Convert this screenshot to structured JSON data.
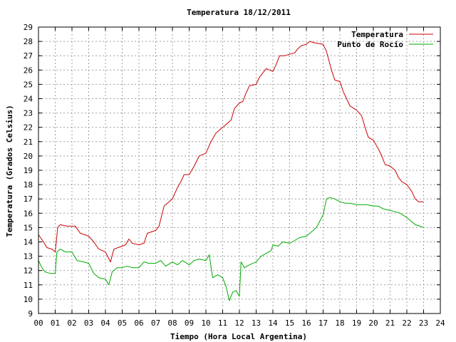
{
  "chart_data": {
    "type": "line",
    "title": "Temperatura 18/12/2011",
    "xlabel": "Tiempo (Hora Local Argentina)",
    "ylabel": "Temperatura (Grados Celsius)",
    "xlim": [
      0,
      24
    ],
    "ylim": [
      9,
      29
    ],
    "x_ticks": [
      "00",
      "01",
      "02",
      "03",
      "04",
      "05",
      "06",
      "07",
      "08",
      "09",
      "10",
      "11",
      "12",
      "13",
      "14",
      "15",
      "16",
      "17",
      "18",
      "19",
      "20",
      "21",
      "22",
      "23",
      "24"
    ],
    "y_ticks": [
      9,
      10,
      11,
      12,
      13,
      14,
      15,
      16,
      17,
      18,
      19,
      20,
      21,
      22,
      23,
      24,
      25,
      26,
      27,
      28,
      29
    ],
    "grid": true,
    "legend_position": "top-right",
    "series": [
      {
        "name": "Temperatura",
        "color": "#cc0000",
        "points": [
          [
            0.0,
            14.5
          ],
          [
            0.3,
            14.0
          ],
          [
            0.5,
            13.6
          ],
          [
            0.8,
            13.5
          ],
          [
            1.0,
            13.3
          ],
          [
            1.15,
            15.0
          ],
          [
            1.3,
            15.2
          ],
          [
            1.7,
            15.1
          ],
          [
            2.2,
            15.1
          ],
          [
            2.5,
            14.6
          ],
          [
            3.0,
            14.4
          ],
          [
            3.3,
            14.0
          ],
          [
            3.6,
            13.5
          ],
          [
            4.0,
            13.3
          ],
          [
            4.3,
            12.6
          ],
          [
            4.5,
            13.5
          ],
          [
            5.0,
            13.7
          ],
          [
            5.2,
            13.8
          ],
          [
            5.4,
            14.2
          ],
          [
            5.6,
            13.9
          ],
          [
            6.0,
            13.8
          ],
          [
            6.3,
            13.9
          ],
          [
            6.5,
            14.6
          ],
          [
            7.0,
            14.8
          ],
          [
            7.2,
            15.1
          ],
          [
            7.5,
            16.5
          ],
          [
            7.8,
            16.8
          ],
          [
            8.0,
            17.0
          ],
          [
            8.3,
            17.8
          ],
          [
            8.5,
            18.2
          ],
          [
            8.7,
            18.7
          ],
          [
            9.0,
            18.7
          ],
          [
            9.3,
            19.3
          ],
          [
            9.6,
            20.0
          ],
          [
            10.0,
            20.2
          ],
          [
            10.3,
            21.0
          ],
          [
            10.6,
            21.6
          ],
          [
            11.0,
            22.0
          ],
          [
            11.3,
            22.3
          ],
          [
            11.5,
            22.5
          ],
          [
            11.7,
            23.3
          ],
          [
            12.0,
            23.7
          ],
          [
            12.2,
            23.8
          ],
          [
            12.4,
            24.4
          ],
          [
            12.6,
            24.9
          ],
          [
            13.0,
            25.0
          ],
          [
            13.2,
            25.5
          ],
          [
            13.4,
            25.8
          ],
          [
            13.6,
            26.1
          ],
          [
            14.0,
            25.9
          ],
          [
            14.2,
            26.4
          ],
          [
            14.4,
            27.0
          ],
          [
            14.7,
            27.0
          ],
          [
            15.0,
            27.1
          ],
          [
            15.3,
            27.2
          ],
          [
            15.5,
            27.5
          ],
          [
            15.7,
            27.7
          ],
          [
            16.0,
            27.8
          ],
          [
            16.2,
            28.0
          ],
          [
            16.5,
            27.9
          ],
          [
            17.0,
            27.8
          ],
          [
            17.2,
            27.3
          ],
          [
            17.5,
            26.0
          ],
          [
            17.7,
            25.3
          ],
          [
            18.0,
            25.2
          ],
          [
            18.2,
            24.5
          ],
          [
            18.4,
            24.0
          ],
          [
            18.6,
            23.5
          ],
          [
            19.0,
            23.2
          ],
          [
            19.3,
            22.8
          ],
          [
            19.5,
            22.0
          ],
          [
            19.7,
            21.3
          ],
          [
            20.0,
            21.1
          ],
          [
            20.3,
            20.5
          ],
          [
            20.5,
            20.0
          ],
          [
            20.7,
            19.4
          ],
          [
            21.0,
            19.3
          ],
          [
            21.3,
            19.0
          ],
          [
            21.5,
            18.5
          ],
          [
            21.7,
            18.2
          ],
          [
            22.0,
            18.0
          ],
          [
            22.3,
            17.5
          ],
          [
            22.5,
            17.0
          ],
          [
            22.7,
            16.8
          ],
          [
            23.0,
            16.8
          ]
        ]
      },
      {
        "name": "Punto de Rocío",
        "color": "#00aa00",
        "points": [
          [
            0.0,
            12.7
          ],
          [
            0.2,
            12.2
          ],
          [
            0.4,
            11.9
          ],
          [
            0.7,
            11.8
          ],
          [
            1.0,
            11.8
          ],
          [
            1.1,
            13.3
          ],
          [
            1.3,
            13.5
          ],
          [
            1.6,
            13.3
          ],
          [
            2.0,
            13.3
          ],
          [
            2.3,
            12.7
          ],
          [
            2.7,
            12.6
          ],
          [
            3.0,
            12.5
          ],
          [
            3.3,
            11.8
          ],
          [
            3.6,
            11.5
          ],
          [
            4.0,
            11.4
          ],
          [
            4.2,
            11.0
          ],
          [
            4.4,
            11.9
          ],
          [
            4.7,
            12.2
          ],
          [
            5.0,
            12.2
          ],
          [
            5.3,
            12.3
          ],
          [
            5.6,
            12.2
          ],
          [
            6.0,
            12.2
          ],
          [
            6.3,
            12.6
          ],
          [
            6.6,
            12.5
          ],
          [
            7.0,
            12.5
          ],
          [
            7.3,
            12.7
          ],
          [
            7.6,
            12.3
          ],
          [
            8.0,
            12.6
          ],
          [
            8.3,
            12.4
          ],
          [
            8.6,
            12.7
          ],
          [
            9.0,
            12.4
          ],
          [
            9.3,
            12.7
          ],
          [
            9.6,
            12.8
          ],
          [
            10.0,
            12.7
          ],
          [
            10.2,
            13.1
          ],
          [
            10.4,
            11.5
          ],
          [
            10.7,
            11.7
          ],
          [
            11.0,
            11.5
          ],
          [
            11.2,
            10.9
          ],
          [
            11.4,
            9.9
          ],
          [
            11.6,
            10.5
          ],
          [
            11.8,
            10.6
          ],
          [
            12.0,
            10.2
          ],
          [
            12.1,
            12.6
          ],
          [
            12.3,
            12.2
          ],
          [
            12.6,
            12.4
          ],
          [
            13.0,
            12.6
          ],
          [
            13.3,
            13.0
          ],
          [
            13.6,
            13.2
          ],
          [
            13.9,
            13.4
          ],
          [
            14.0,
            13.8
          ],
          [
            14.3,
            13.7
          ],
          [
            14.6,
            14.0
          ],
          [
            15.0,
            13.9
          ],
          [
            15.3,
            14.1
          ],
          [
            15.6,
            14.3
          ],
          [
            16.0,
            14.4
          ],
          [
            16.3,
            14.7
          ],
          [
            16.6,
            15.0
          ],
          [
            17.0,
            15.9
          ],
          [
            17.2,
            17.0
          ],
          [
            17.4,
            17.1
          ],
          [
            17.7,
            17.0
          ],
          [
            18.0,
            16.8
          ],
          [
            18.3,
            16.7
          ],
          [
            18.6,
            16.7
          ],
          [
            19.0,
            16.6
          ],
          [
            19.3,
            16.6
          ],
          [
            19.6,
            16.6
          ],
          [
            20.0,
            16.5
          ],
          [
            20.3,
            16.5
          ],
          [
            20.6,
            16.3
          ],
          [
            21.0,
            16.2
          ],
          [
            21.3,
            16.1
          ],
          [
            21.6,
            16.0
          ],
          [
            22.0,
            15.7
          ],
          [
            22.2,
            15.5
          ],
          [
            22.5,
            15.2
          ],
          [
            22.8,
            15.1
          ],
          [
            23.0,
            15.0
          ]
        ]
      }
    ]
  }
}
